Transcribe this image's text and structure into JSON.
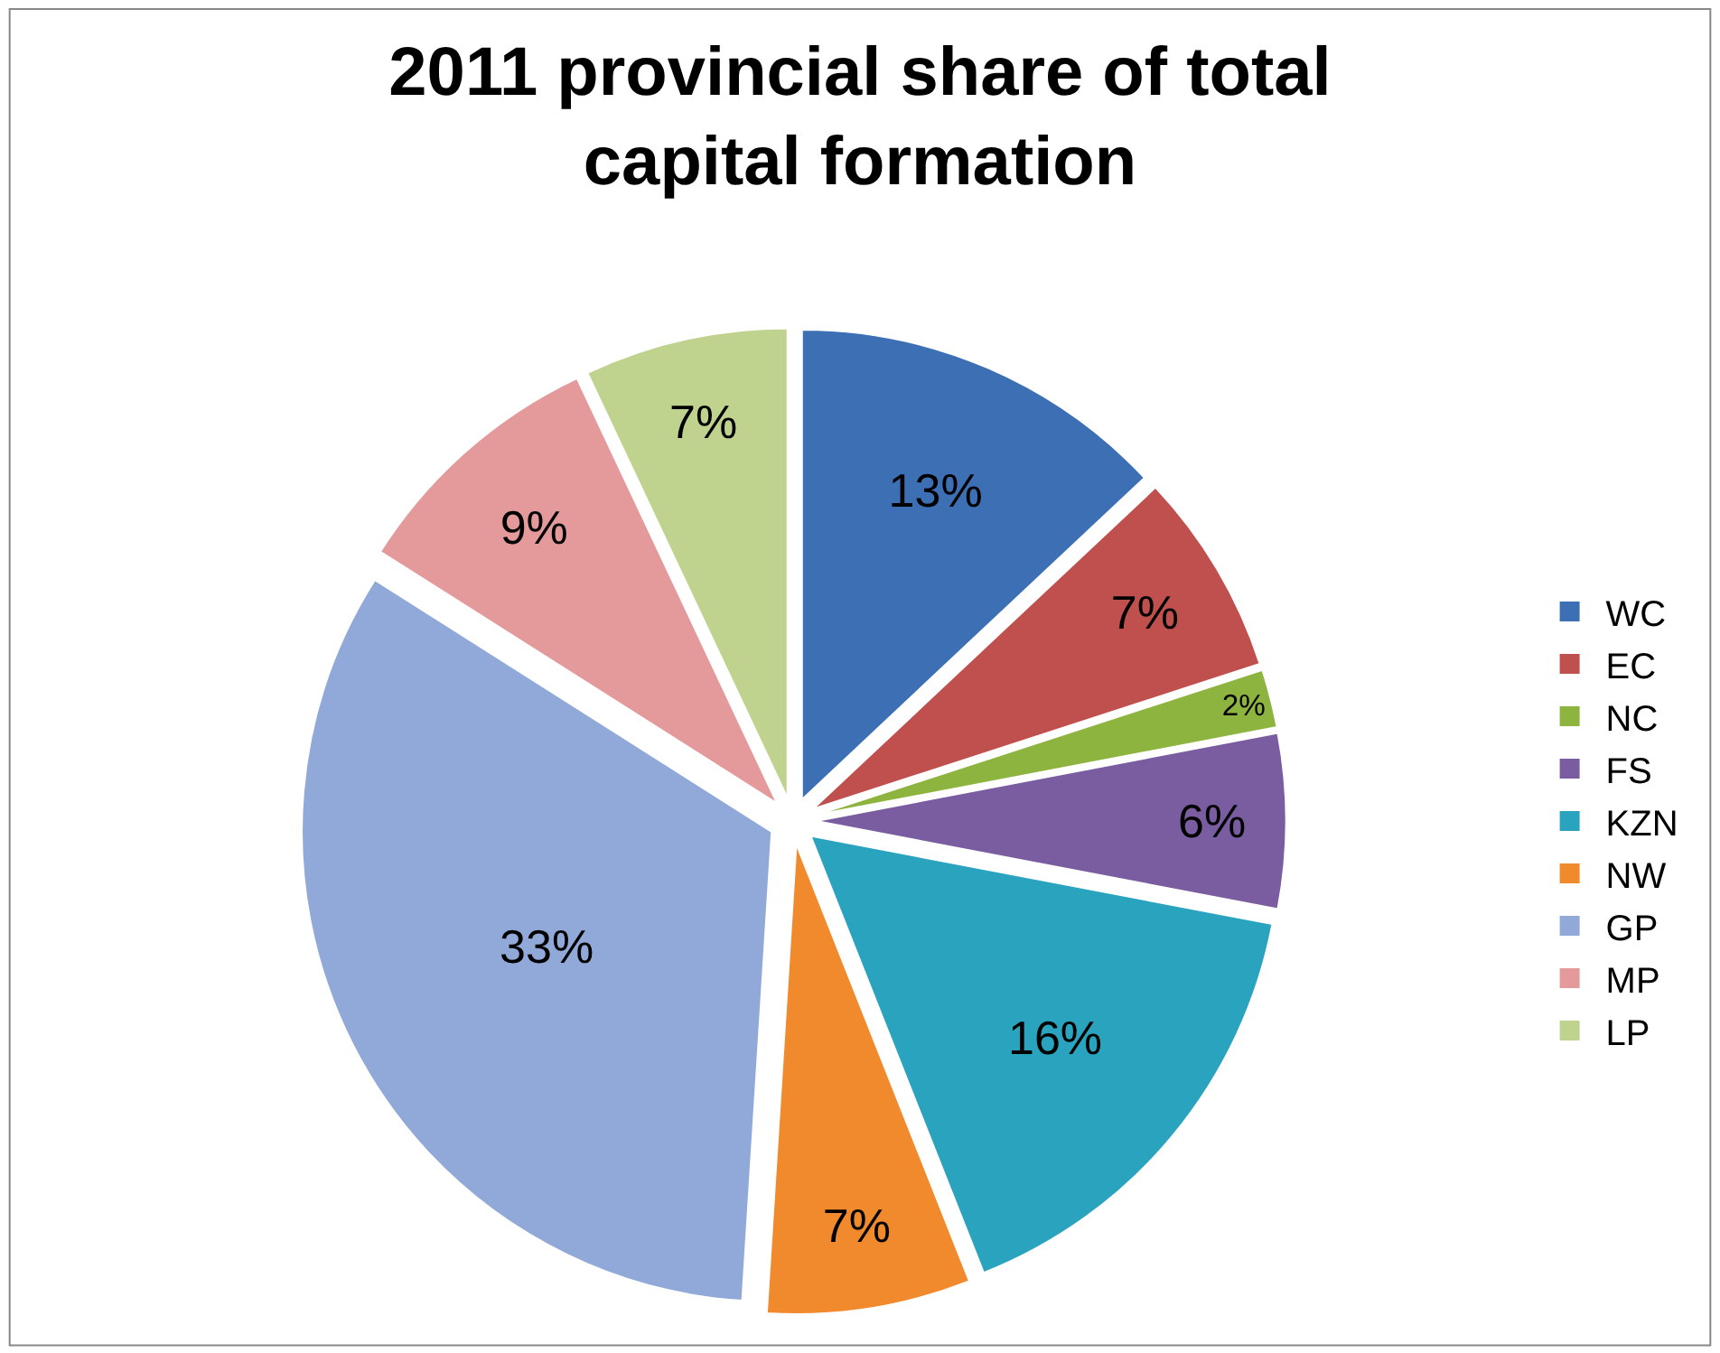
{
  "chart_data": {
    "type": "pie",
    "title": "2011 provincial share of total capital formation",
    "categories": [
      "WC",
      "EC",
      "NC",
      "FS",
      "KZN",
      "NW",
      "GP",
      "MP",
      "LP"
    ],
    "values": [
      13,
      7,
      2,
      6,
      16,
      7,
      33,
      9,
      7
    ],
    "value_labels": [
      "13%",
      "7%",
      "2%",
      "6%",
      "16%",
      "7%",
      "33%",
      "9%",
      "7%"
    ],
    "colors": [
      "#3c6fb4",
      "#c0504d",
      "#8db43f",
      "#7a5ca0",
      "#2aa3bf",
      "#f08a2c",
      "#90a9d8",
      "#e49a9a",
      "#bfd38f"
    ],
    "legend": "right"
  }
}
